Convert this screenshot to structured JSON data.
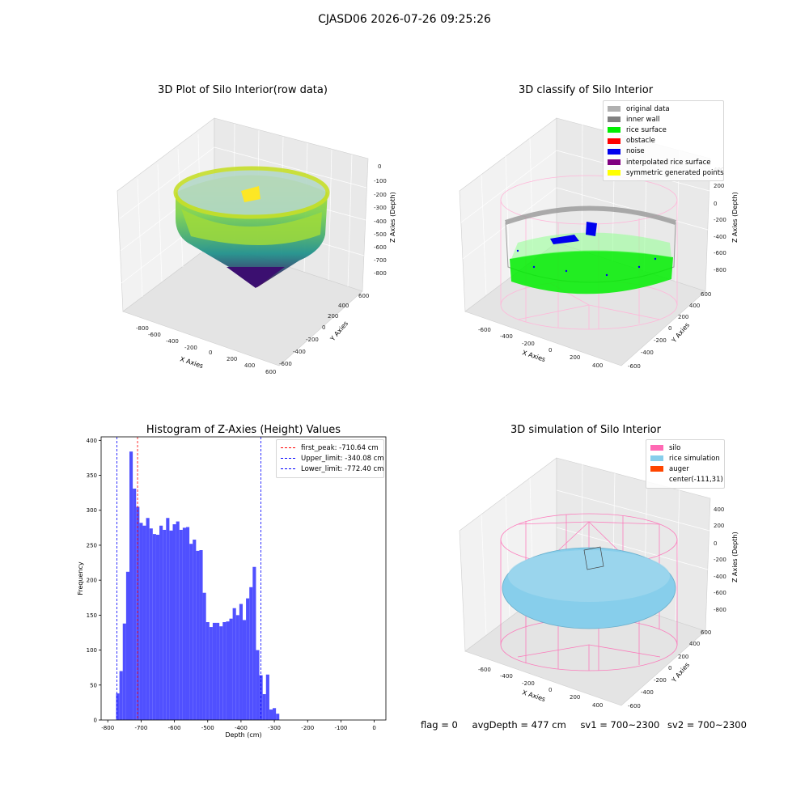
{
  "figure": {
    "suptitle": "CJASD06 2026-07-26 09:25:26"
  },
  "panels": {
    "raw": {
      "title": "3D Plot of Silo Interior(row data)",
      "xlabel": "X Axies",
      "ylabel": "Y Axies",
      "zlabel": "Z Axies (Depth)",
      "xticks": [
        "-800",
        "-600",
        "-400",
        "-200",
        "0",
        "200",
        "400",
        "600"
      ],
      "yticks": [
        "600",
        "400",
        "200",
        "0",
        "-200",
        "-400",
        "-600"
      ],
      "zticks": [
        "0",
        "-100",
        "-200",
        "-300",
        "-400",
        "-500",
        "-600",
        "-700",
        "-800"
      ],
      "colormap": "viridis"
    },
    "classify": {
      "title": "3D classify of Silo Interior",
      "xlabel": "X Axies",
      "ylabel": "Y Axies",
      "zlabel": "Z Axies (Depth)",
      "xticks": [
        "-600",
        "-400",
        "-200",
        "0",
        "200",
        "400"
      ],
      "yticks": [
        "600",
        "400",
        "200",
        "0",
        "-200",
        "-400",
        "-600"
      ],
      "zticks": [
        "200",
        "0",
        "-200",
        "-400",
        "-600",
        "-800"
      ],
      "zticks_top": "400",
      "legend": [
        {
          "label": "original data",
          "color": "#b0b0b0"
        },
        {
          "label": "inner wall",
          "color": "#808080"
        },
        {
          "label": "rice surface",
          "color": "#00ee00"
        },
        {
          "label": "obstacle",
          "color": "#ff0000"
        },
        {
          "label": "noise",
          "color": "#0000ee"
        },
        {
          "label": "interpolated rice surface",
          "color": "#800080"
        },
        {
          "label": "symmetric generated points",
          "color": "#ffff00"
        }
      ]
    },
    "histogram": {
      "title": "Histogram of Z-Axies (Height) Values",
      "legend": [
        {
          "label": "first_peak: -710.64 cm",
          "color": "#ff0000"
        },
        {
          "label": "Upper_limit: -340.08 cm",
          "color": "#0000ff"
        },
        {
          "label": "Lower_limit: -772.40 cm",
          "color": "#0000ff"
        }
      ]
    },
    "simulation": {
      "title": "3D simulation of Silo Interior",
      "xlabel": "X Axies",
      "ylabel": "Y Axies",
      "zlabel": "Z Axies (Depth)",
      "xticks": [
        "-600",
        "-400",
        "-200",
        "0",
        "200",
        "400"
      ],
      "yticks": [
        "600",
        "400",
        "200",
        "0",
        "-200",
        "-400",
        "-600"
      ],
      "zticks": [
        "400",
        "200",
        "0",
        "-200",
        "-400",
        "-600",
        "-800"
      ],
      "legend": [
        {
          "label": "silo",
          "color": "#ff69b4"
        },
        {
          "label": "rice simulation",
          "color": "#87ceeb"
        },
        {
          "label": "auger",
          "color": "#ff4500"
        },
        {
          "label": "center(-111,31)",
          "color": ""
        }
      ]
    }
  },
  "status": {
    "flag": "flag = 0",
    "avg_depth": "avgDepth = 477 cm",
    "sv1": "sv1 = 700~2300",
    "sv2": "sv2 = 700~2300"
  },
  "chart_data": [
    {
      "type": "scatter",
      "title": "3D Plot of Silo Interior(row data)",
      "xlabel": "X Axies",
      "ylabel": "Y Axies",
      "zlabel": "Z Axies (Depth)",
      "xlim": [
        -800,
        600
      ],
      "ylim": [
        -600,
        600
      ],
      "zlim": [
        -800,
        0
      ],
      "colormap": "viridis",
      "grid": true
    },
    {
      "type": "scatter",
      "title": "3D classify of Silo Interior",
      "xlabel": "X Axies",
      "ylabel": "Y Axies",
      "zlabel": "Z Axies (Depth)",
      "xlim": [
        -600,
        400
      ],
      "ylim": [
        -600,
        600
      ],
      "zlim": [
        -800,
        400
      ],
      "series": [
        {
          "name": "original data"
        },
        {
          "name": "inner wall"
        },
        {
          "name": "rice surface"
        },
        {
          "name": "obstacle"
        },
        {
          "name": "noise"
        },
        {
          "name": "interpolated rice surface"
        },
        {
          "name": "symmetric generated points"
        }
      ],
      "legend_position": "top-right",
      "grid": true
    },
    {
      "type": "bar",
      "title": "Histogram of Z-Axies (Height) Values",
      "xlabel": "Depth (cm)",
      "ylabel": "Frequency",
      "xlim": [
        -820,
        35
      ],
      "ylim": [
        0,
        405
      ],
      "xticks": [
        -800,
        -700,
        -600,
        -500,
        -400,
        -300,
        -200,
        -100,
        0
      ],
      "yticks": [
        0,
        50,
        100,
        150,
        200,
        250,
        300,
        350,
        400
      ],
      "bin_start": -775,
      "bin_width": 10,
      "values": [
        38,
        70,
        138,
        212,
        384,
        331,
        305,
        282,
        278,
        289,
        274,
        266,
        265,
        278,
        272,
        289,
        271,
        280,
        284,
        272,
        275,
        276,
        252,
        258,
        242,
        243,
        182,
        140,
        133,
        139,
        139,
        134,
        140,
        141,
        145,
        160,
        150,
        166,
        143,
        174,
        190,
        219,
        100,
        64,
        37,
        65,
        15,
        17,
        9
      ],
      "vlines": [
        {
          "name": "first_peak: -710.64 cm",
          "x": -710.64,
          "color": "#ff0000"
        },
        {
          "name": "Upper_limit: -340.08 cm",
          "x": -340.08,
          "color": "#0000ff"
        },
        {
          "name": "Lower_limit: -772.40 cm",
          "x": -772.4,
          "color": "#0000ff"
        }
      ],
      "bar_color": "#5050ff",
      "legend_position": "top-right"
    },
    {
      "type": "scatter",
      "title": "3D simulation of Silo Interior",
      "xlabel": "X Axies",
      "ylabel": "Y Axies",
      "zlabel": "Z Axies (Depth)",
      "xlim": [
        -600,
        400
      ],
      "ylim": [
        -600,
        600
      ],
      "zlim": [
        -800,
        400
      ],
      "series": [
        {
          "name": "silo"
        },
        {
          "name": "rice simulation"
        },
        {
          "name": "auger"
        },
        {
          "name": "center(-111,31)"
        }
      ],
      "legend_position": "top-right",
      "grid": true
    }
  ]
}
